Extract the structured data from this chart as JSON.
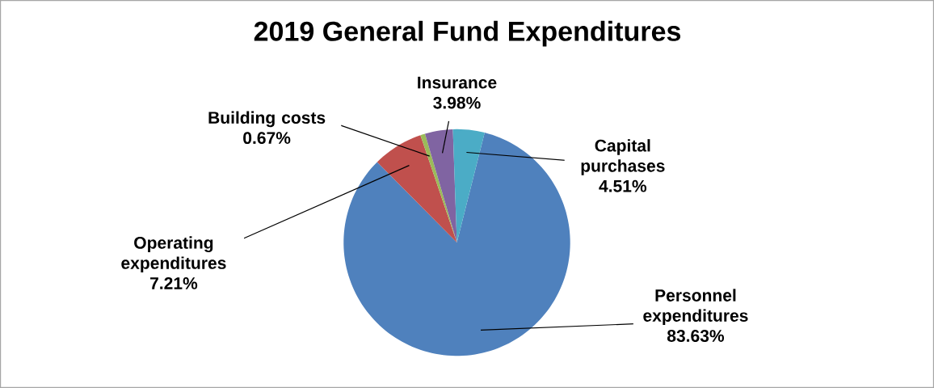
{
  "chart_data": {
    "type": "pie",
    "title": "2019 General Fund Expenditures",
    "categories": [
      "Personnel expenditures",
      "Operating expenditures",
      "Building costs",
      "Insurance",
      "Capital purchases"
    ],
    "values": [
      83.63,
      7.21,
      0.67,
      3.98,
      4.51
    ],
    "value_labels": [
      "83.63%",
      "7.21%",
      "0.67%",
      "3.98%",
      "4.51%"
    ],
    "colors": [
      "#4f81bd",
      "#c0504d",
      "#9bbb59",
      "#8064a2",
      "#4bacc6"
    ]
  }
}
